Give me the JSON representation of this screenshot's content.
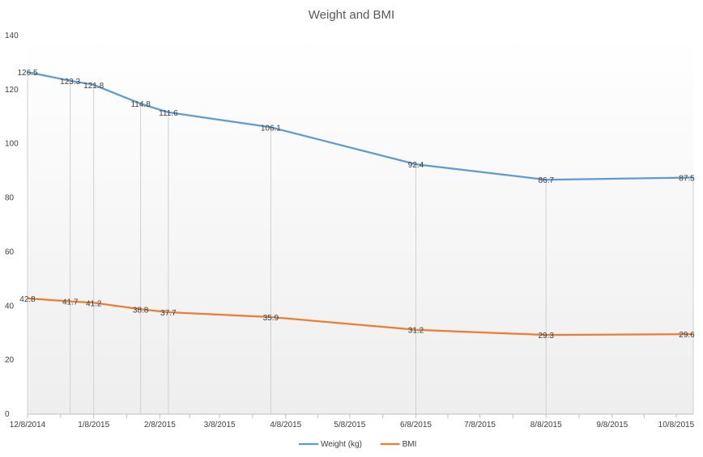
{
  "chart_data": {
    "type": "line",
    "title": "Weight and BMI",
    "xlabel": "",
    "ylabel": "",
    "ylim": [
      0,
      140
    ],
    "yticks": [
      0,
      20,
      40,
      60,
      80,
      100,
      120,
      140
    ],
    "x_tick_labels": [
      "12/8/2014",
      "1/8/2015",
      "2/8/2015",
      "3/8/2015",
      "4/8/2015",
      "5/8/2015",
      "6/8/2015",
      "7/8/2015",
      "8/8/2015",
      "9/8/2015",
      "10/8/2015"
    ],
    "x_range": [
      "2014-12-08",
      "2015-10-16"
    ],
    "x": [
      "2014-12-08",
      "2014-12-28",
      "2015-01-08",
      "2015-01-30",
      "2015-02-12",
      "2015-04-01",
      "2015-06-08",
      "2015-08-08",
      "2015-10-16"
    ],
    "series": [
      {
        "name": "Weight (kg)",
        "color": "#5B9BD5",
        "values": [
          126.5,
          123.3,
          121.8,
          114.8,
          111.6,
          106.1,
          92.4,
          86.7,
          87.5
        ]
      },
      {
        "name": "BMI",
        "color": "#ED7D31",
        "values": [
          42.8,
          41.7,
          41.2,
          38.8,
          37.7,
          35.9,
          31.2,
          29.3,
          29.6
        ]
      }
    ],
    "legend_position": "bottom",
    "drop_lines": true,
    "grid": false
  }
}
